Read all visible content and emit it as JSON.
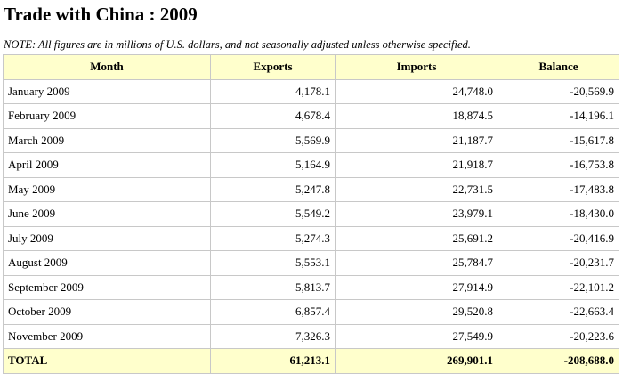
{
  "title": "Trade with China : 2009",
  "note": "NOTE: All figures are in millions of U.S. dollars, and not seasonally adjusted unless otherwise specified.",
  "table": {
    "columns": [
      "Month",
      "Exports",
      "Imports",
      "Balance"
    ],
    "rows": [
      [
        "January 2009",
        "4,178.1",
        "24,748.0",
        "-20,569.9"
      ],
      [
        "February 2009",
        "4,678.4",
        "18,874.5",
        "-14,196.1"
      ],
      [
        "March 2009",
        "5,569.9",
        "21,187.7",
        "-15,617.8"
      ],
      [
        "April 2009",
        "5,164.9",
        "21,918.7",
        "-16,753.8"
      ],
      [
        "May 2009",
        "5,247.8",
        "22,731.5",
        "-17,483.8"
      ],
      [
        "June 2009",
        "5,549.2",
        "23,979.1",
        "-18,430.0"
      ],
      [
        "July 2009",
        "5,274.3",
        "25,691.2",
        "-20,416.9"
      ],
      [
        "August 2009",
        "5,553.1",
        "25,784.7",
        "-20,231.7"
      ],
      [
        "September 2009",
        "5,813.7",
        "27,914.9",
        "-22,101.2"
      ],
      [
        "October 2009",
        "6,857.4",
        "29,520.8",
        "-22,663.4"
      ],
      [
        "November 2009",
        "7,326.3",
        "27,549.9",
        "-20,223.6"
      ]
    ],
    "total": [
      "TOTAL",
      "61,213.1",
      "269,901.1",
      "-208,688.0"
    ]
  },
  "colors": {
    "header_bg": "#ffffcc",
    "border": "#c8c8c8"
  }
}
